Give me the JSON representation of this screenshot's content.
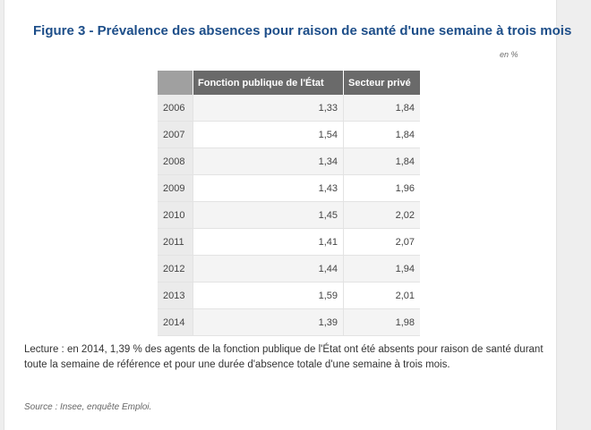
{
  "figure": {
    "title": "Figure 3 - Prévalence des absences pour raison de santé d'une semaine à trois mois",
    "unit": "en %",
    "note": "Lecture : en 2014, 1,39 % des agents de la fonction publique de l'État ont été absents pour raison de santé durant toute la semaine de référence et pour une durée d'absence totale d'une semaine à trois mois.",
    "source": "Source : Insee, enquête Emploi."
  },
  "chart_data": {
    "type": "table",
    "title": "Figure 3 - Prévalence des absences pour raison de santé d'une semaine à trois mois",
    "unit": "en %",
    "columns": [
      "Fonction publique de l'État",
      "Secteur privé"
    ],
    "rows": [
      {
        "year": "2006",
        "fpe": "1,33",
        "prive": "1,84"
      },
      {
        "year": "2007",
        "fpe": "1,54",
        "prive": "1,84"
      },
      {
        "year": "2008",
        "fpe": "1,34",
        "prive": "1,84"
      },
      {
        "year": "2009",
        "fpe": "1,43",
        "prive": "1,96"
      },
      {
        "year": "2010",
        "fpe": "1,45",
        "prive": "2,02"
      },
      {
        "year": "2011",
        "fpe": "1,41",
        "prive": "2,07"
      },
      {
        "year": "2012",
        "fpe": "1,44",
        "prive": "1,94"
      },
      {
        "year": "2013",
        "fpe": "1,59",
        "prive": "2,01"
      },
      {
        "year": "2014",
        "fpe": "1,39",
        "prive": "1,98"
      }
    ],
    "series": [
      {
        "name": "Fonction publique de l'État",
        "values": [
          1.33,
          1.54,
          1.34,
          1.43,
          1.45,
          1.41,
          1.44,
          1.59,
          1.39
        ]
      },
      {
        "name": "Secteur privé",
        "values": [
          1.84,
          1.84,
          1.84,
          1.96,
          2.02,
          2.07,
          1.94,
          2.01,
          1.98
        ]
      }
    ],
    "categories": [
      "2006",
      "2007",
      "2008",
      "2009",
      "2010",
      "2011",
      "2012",
      "2013",
      "2014"
    ]
  }
}
